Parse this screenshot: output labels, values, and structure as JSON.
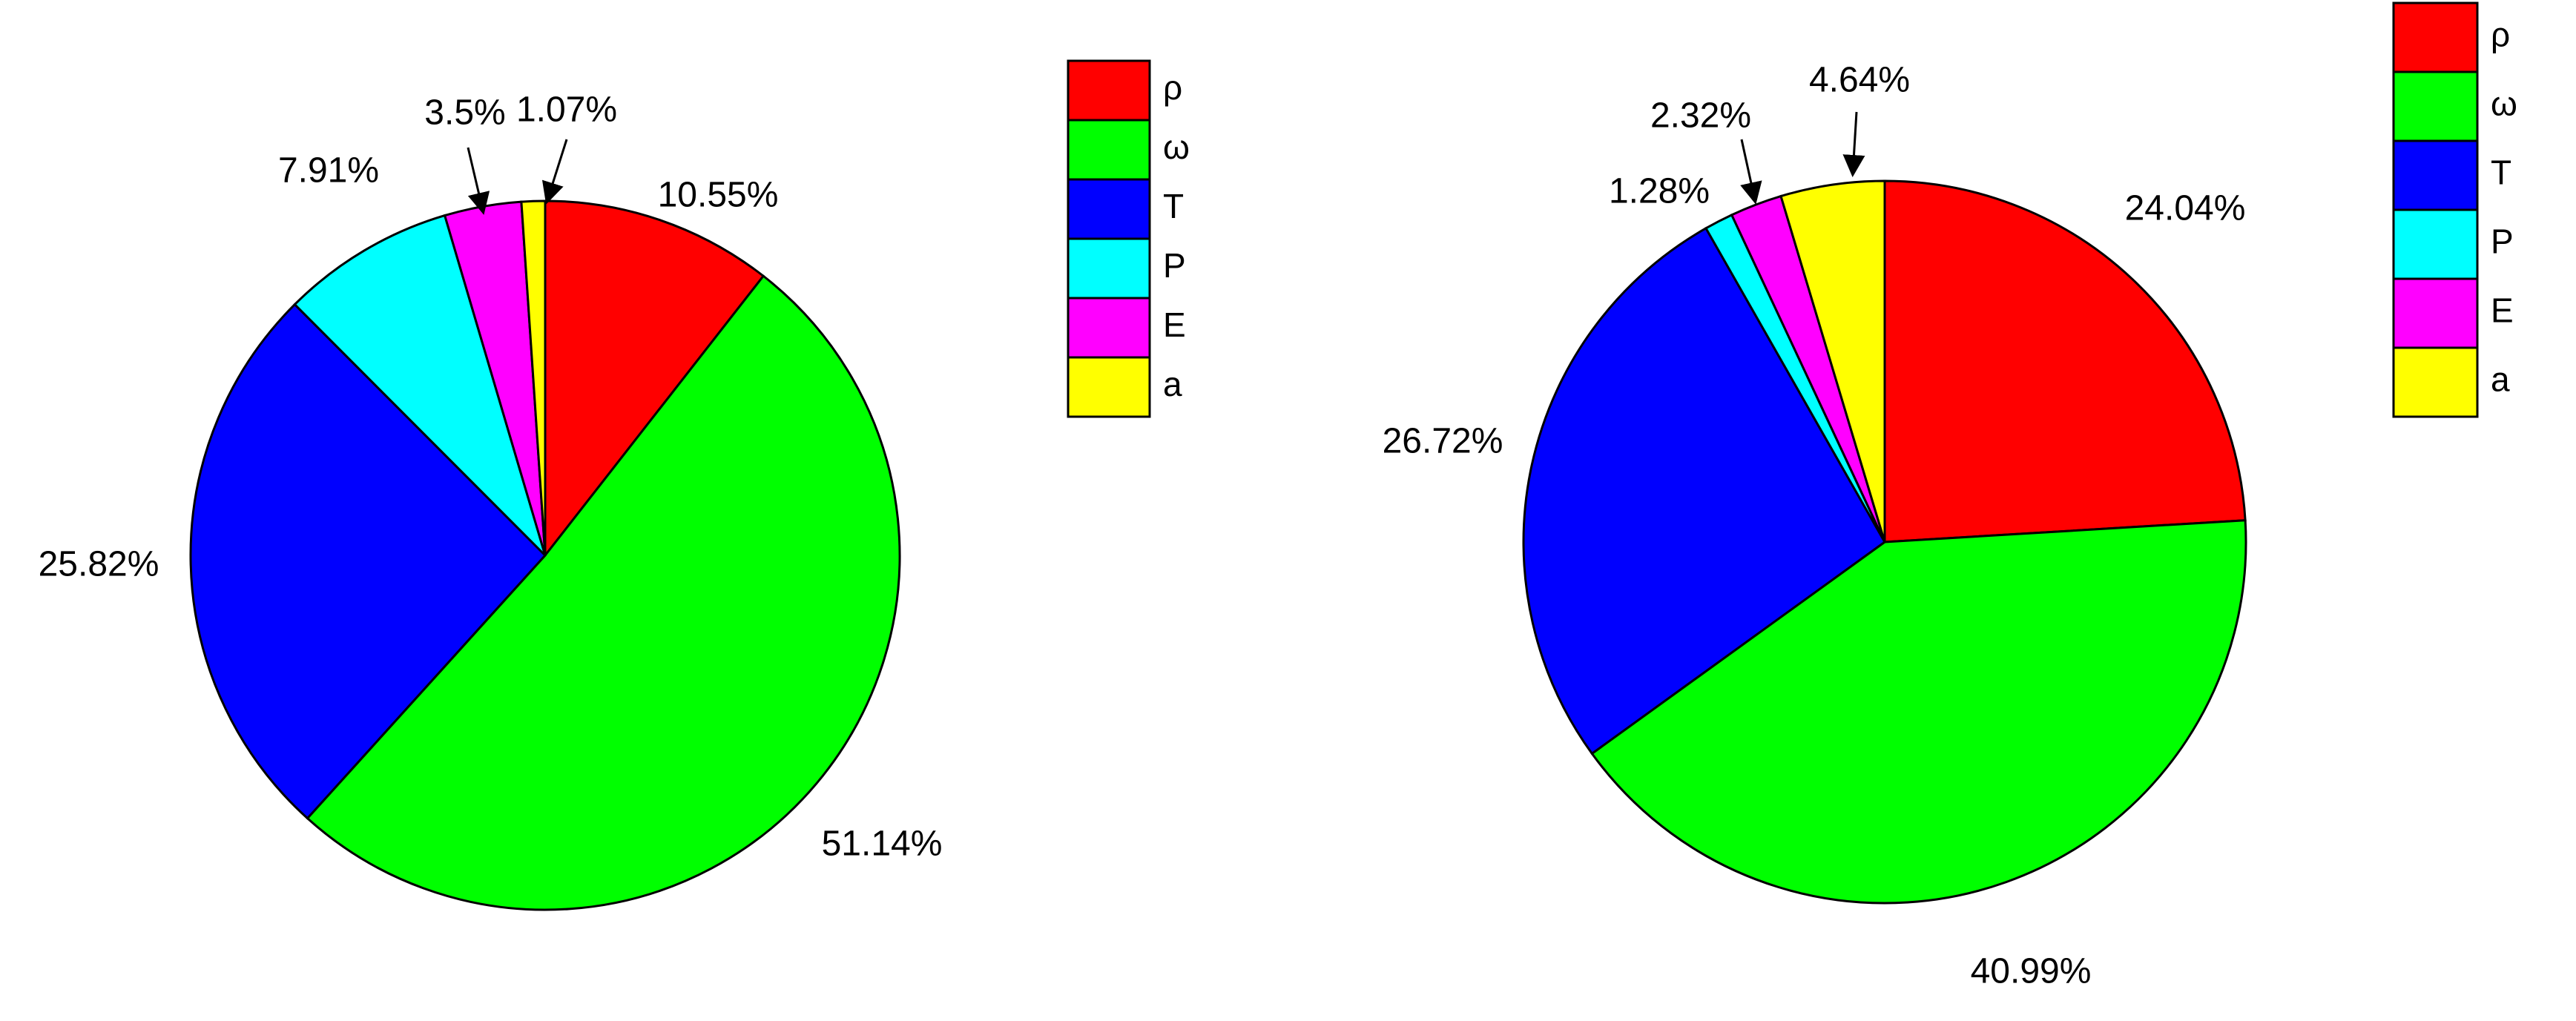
{
  "chart_data": [
    {
      "type": "pie",
      "categories": [
        "ρ",
        "ω",
        "T",
        "P",
        "E",
        "a"
      ],
      "values": [
        10.55,
        51.14,
        25.82,
        7.91,
        3.5,
        1.07
      ],
      "value_labels": [
        "10.55%",
        "51.14%",
        "25.82%",
        "7.91%",
        "3.5%",
        "1.07%"
      ],
      "colors": [
        "#ff0000",
        "#00ff00",
        "#0000ff",
        "#00ffff",
        "#ff00ff",
        "#ffff00"
      ],
      "legend": "upper right"
    },
    {
      "type": "pie",
      "categories": [
        "ρ",
        "ω",
        "T",
        "P",
        "E",
        "a"
      ],
      "values": [
        24.04,
        40.99,
        26.72,
        1.28,
        2.32,
        4.64
      ],
      "value_labels": [
        "24.04%",
        "40.99%",
        "26.72%",
        "1.28%",
        "2.32%",
        "4.64%"
      ],
      "colors": [
        "#ff0000",
        "#00ff00",
        "#0000ff",
        "#00ffff",
        "#ff00ff",
        "#ffff00"
      ],
      "legend": "upper right"
    }
  ]
}
